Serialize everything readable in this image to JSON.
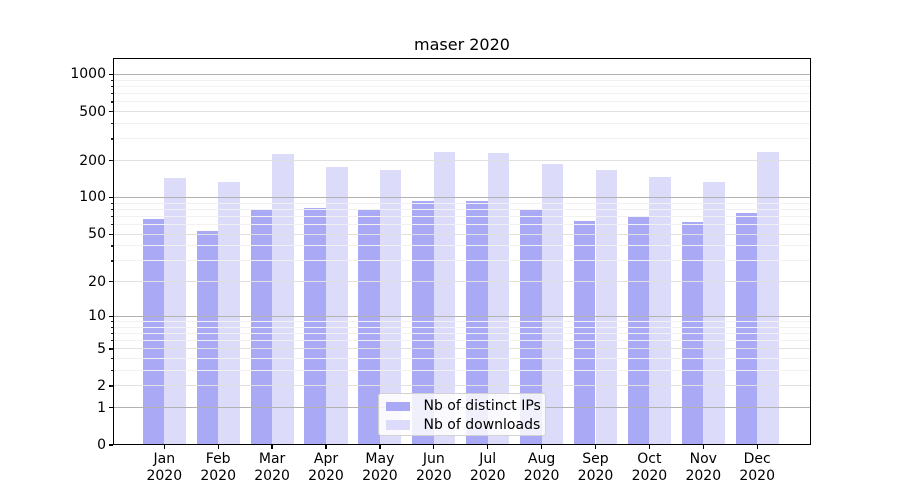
{
  "chart_data": {
    "type": "bar",
    "title": "maser 2020",
    "categories": [
      "Jan 2020",
      "Feb 2020",
      "Mar 2020",
      "Apr 2020",
      "May 2020",
      "Jun 2020",
      "Jul 2020",
      "Aug 2020",
      "Sep 2020",
      "Oct 2020",
      "Nov 2020",
      "Dec 2020"
    ],
    "month_labels": [
      "Jan",
      "Feb",
      "Mar",
      "Apr",
      "May",
      "Jun",
      "Jul",
      "Aug",
      "Sep",
      "Oct",
      "Nov",
      "Dec"
    ],
    "year_label": "2020",
    "series": [
      {
        "name": "Nb of distinct IPs",
        "color": "#a9a9f5",
        "values": [
          66,
          53,
          79,
          81,
          79,
          92,
          93,
          79,
          64,
          70,
          62,
          74
        ]
      },
      {
        "name": "Nb of downloads",
        "color": "#dcdcfa",
        "values": [
          143,
          132,
          224,
          177,
          166,
          233,
          230,
          185,
          166,
          146,
          133,
          233
        ]
      }
    ],
    "xlabel": "",
    "ylabel": "",
    "yscale": "log1p",
    "ylim": [
      0,
      1320
    ],
    "yticks": [
      0,
      1,
      2,
      5,
      10,
      20,
      50,
      100,
      200,
      500,
      1000
    ],
    "ytick_labels": [
      "0",
      "1",
      "2",
      "5",
      "10",
      "20",
      "50",
      "100",
      "200",
      "500",
      "1000"
    ],
    "grid": "on",
    "legend_position": "lower center",
    "colors": {
      "grid_major": "#b2b2b2",
      "grid_mid": "#e0e0e0",
      "grid_minor": "#f1f1f1",
      "spine": "#000000",
      "background": "#ffffff"
    }
  }
}
